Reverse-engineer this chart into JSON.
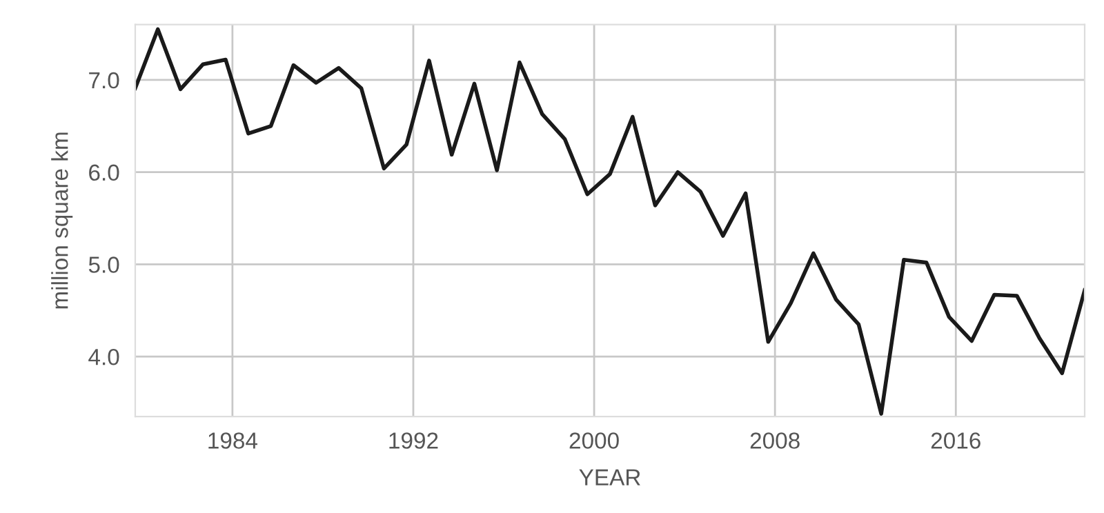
{
  "chart_data": {
    "type": "line",
    "xlabel": "YEAR",
    "ylabel": "million square km",
    "x": [
      1979.7,
      1980.7,
      1981.7,
      1982.7,
      1983.7,
      1984.7,
      1985.7,
      1986.7,
      1987.7,
      1988.7,
      1989.7,
      1990.7,
      1991.7,
      1992.7,
      1993.7,
      1994.7,
      1995.7,
      1996.7,
      1997.7,
      1998.7,
      1999.7,
      2000.7,
      2001.7,
      2002.7,
      2003.7,
      2004.7,
      2005.7,
      2006.7,
      2007.7,
      2008.7,
      2009.7,
      2010.7,
      2011.7,
      2012.7,
      2013.7,
      2014.7,
      2015.7,
      2016.7,
      2017.7,
      2018.7,
      2019.7,
      2020.7,
      2021.7
    ],
    "series": [
      {
        "color": "#1a1a1a",
        "values": [
          6.91,
          7.55,
          6.9,
          7.17,
          7.22,
          6.42,
          6.5,
          7.16,
          6.97,
          7.13,
          6.91,
          6.04,
          6.3,
          7.21,
          6.19,
          6.96,
          6.02,
          7.19,
          6.63,
          6.36,
          5.76,
          5.98,
          6.6,
          5.64,
          6.0,
          5.79,
          5.31,
          5.77,
          4.16,
          4.58,
          5.12,
          4.62,
          4.35,
          3.38,
          5.05,
          5.02,
          4.43,
          4.17,
          4.67,
          4.66,
          4.2,
          3.82,
          4.72
        ]
      }
    ],
    "xlim": [
      1979.7,
      2021.7
    ],
    "xticks": [
      1984,
      1992,
      2000,
      2008,
      2016
    ],
    "ylim": [
      3.35,
      7.6
    ],
    "yticks": [
      {
        "value": 4,
        "label": "4.0"
      },
      {
        "value": 5,
        "label": "5.0"
      },
      {
        "value": 6,
        "label": "6.0"
      },
      {
        "value": 7,
        "label": "7.0"
      }
    ],
    "grid": true,
    "marker": "none",
    "line_style": "solid",
    "legend": false
  }
}
